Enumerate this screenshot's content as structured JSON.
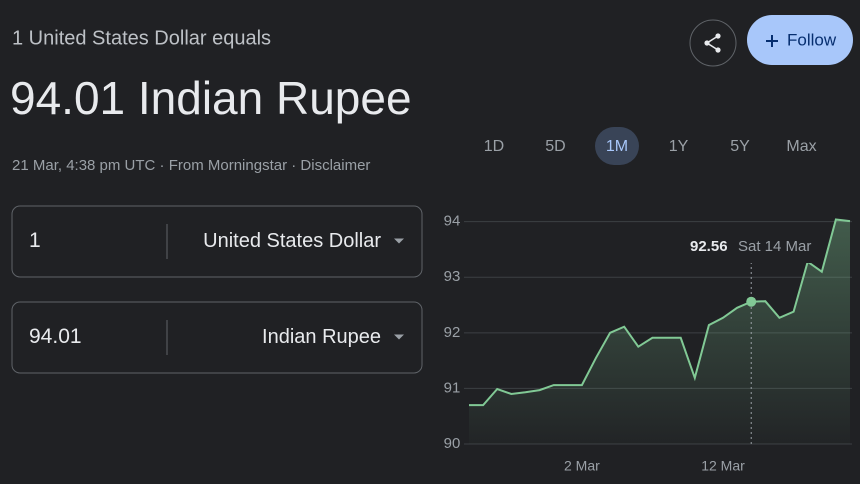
{
  "header": {
    "subtitle": "1 United States Dollar equals",
    "result": "94.01 Indian Rupee",
    "source": "21 Mar, 4:38 pm UTC · From Morningstar · Disclaimer"
  },
  "actions": {
    "follow": "Follow"
  },
  "converter": {
    "rows": [
      {
        "amount": "1",
        "currency": "United States Dollar"
      },
      {
        "amount": "94.01",
        "currency": "Indian Rupee"
      }
    ]
  },
  "ranges": {
    "options": [
      "1D",
      "5D",
      "1M",
      "1Y",
      "5Y",
      "Max"
    ],
    "selected": "1M"
  },
  "chart_data": {
    "type": "line",
    "x": [
      "22 Feb",
      "23 Feb",
      "24 Feb",
      "25 Feb",
      "26 Feb",
      "27 Feb",
      "28 Feb",
      "1 Mar",
      "2 Mar",
      "3 Mar",
      "4 Mar",
      "5 Mar",
      "6 Mar",
      "7 Mar",
      "8 Mar",
      "9 Mar",
      "10 Mar",
      "11 Mar",
      "12 Mar",
      "13 Mar",
      "14 Mar",
      "15 Mar",
      "16 Mar",
      "17 Mar",
      "18 Mar",
      "19 Mar",
      "20 Mar",
      "21 Mar"
    ],
    "values": [
      90.7,
      90.7,
      90.99,
      90.9,
      90.93,
      90.97,
      91.06,
      91.06,
      91.06,
      91.55,
      92.0,
      92.11,
      91.75,
      91.91,
      91.91,
      91.91,
      91.19,
      92.14,
      92.27,
      92.45,
      92.56,
      92.57,
      92.27,
      92.38,
      93.28,
      93.1,
      94.04,
      94.01
    ],
    "color": "#81c995",
    "xlim": [
      "22 Feb",
      "21 Mar"
    ],
    "xticks": [
      "2 Mar",
      "12 Mar"
    ],
    "ylim": [
      90,
      94.3
    ],
    "yticks": [
      90,
      91,
      92,
      93,
      94
    ],
    "grid": true,
    "tooltip": {
      "value": "92.56",
      "date": "Sat 14 Mar"
    }
  }
}
